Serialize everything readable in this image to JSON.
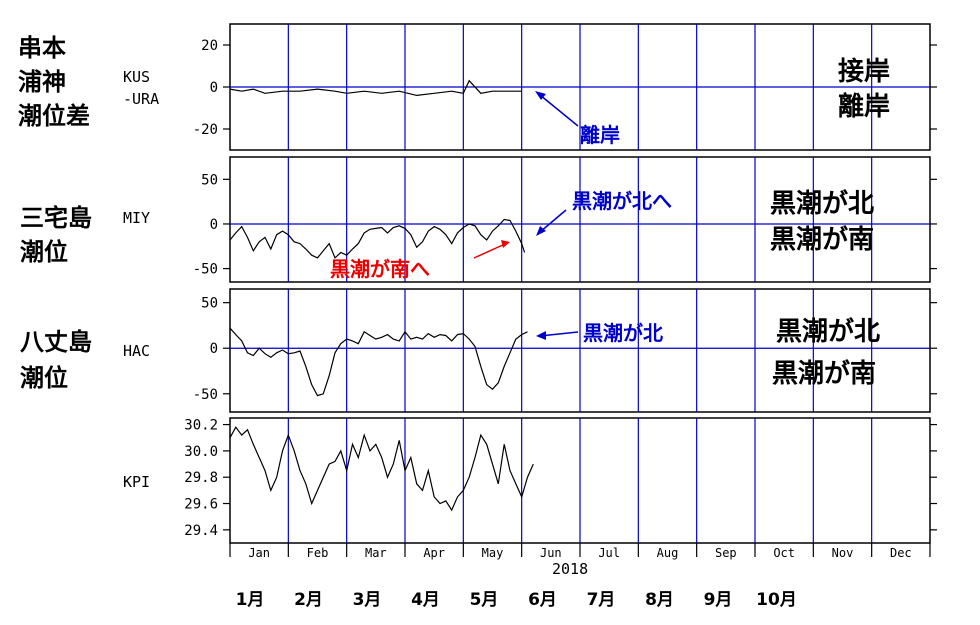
{
  "colors": {
    "grid": "#0000cc",
    "frame": "#000000",
    "series": "#000000",
    "annotation_blue": "#0000cc",
    "annotation_red": "#ee0000"
  },
  "year": "2018",
  "months_en": [
    "Jan",
    "Feb",
    "Mar",
    "Apr",
    "May",
    "Jun",
    "Jul",
    "Aug",
    "Sep",
    "Oct",
    "Nov",
    "Dec"
  ],
  "months_jp": [
    "1月",
    "2月",
    "3月",
    "4月",
    "5月",
    "6月",
    "7月",
    "8月",
    "9月",
    "10月"
  ],
  "panels": [
    {
      "id": "kus",
      "side_label": [
        "串本",
        "浦神",
        "潮位差"
      ],
      "code": [
        "KUS",
        "-URA"
      ],
      "legend": [
        "接岸",
        "離岸"
      ]
    },
    {
      "id": "miy",
      "side_label": [
        "三宅島",
        "潮位"
      ],
      "code": [
        "MIY"
      ],
      "legend": [
        "黒潮が北",
        "黒潮が南"
      ]
    },
    {
      "id": "hac",
      "side_label": [
        "八丈島",
        "潮位"
      ],
      "code": [
        "HAC"
      ],
      "legend": [
        "黒潮が北",
        "黒潮が南"
      ]
    },
    {
      "id": "kpi",
      "side_label": [],
      "code": [
        "KPI"
      ],
      "legend": []
    }
  ],
  "annotations": [
    {
      "id": "kus-ann",
      "text": "離岸",
      "color": "blue"
    },
    {
      "id": "miy-ann-north",
      "text": "黒潮が北へ",
      "color": "blue"
    },
    {
      "id": "miy-ann-south",
      "text": "黒潮が南へ",
      "color": "red"
    },
    {
      "id": "hac-ann",
      "text": "黒潮が北",
      "color": "blue"
    }
  ],
  "chart_data": [
    {
      "type": "line",
      "id": "kus",
      "ylabel": "KUS -URA",
      "ylim": [
        -30,
        30
      ],
      "yticks": [
        20,
        0,
        -20
      ],
      "x_unit": "month (fractional, 2018)",
      "series": [
        {
          "x": [
            1.0,
            1.2,
            1.4,
            1.6,
            1.9,
            2.2,
            2.5,
            2.8,
            3.0,
            3.3,
            3.6,
            3.9,
            4.2,
            4.5,
            4.8,
            5.0,
            5.1,
            5.3,
            5.5,
            5.7,
            5.9,
            6.0
          ],
          "values": [
            -1,
            -2,
            -1,
            -3,
            -2,
            -2,
            -1,
            -2,
            -3,
            -2,
            -3,
            -2,
            -4,
            -3,
            -2,
            -3,
            3,
            -3,
            -2,
            -2,
            -2,
            -2
          ]
        }
      ]
    },
    {
      "type": "line",
      "id": "miy",
      "ylabel": "MIY",
      "ylim": [
        -65,
        75
      ],
      "yticks": [
        50,
        0,
        -50
      ],
      "series": [
        {
          "x": [
            1.0,
            1.1,
            1.2,
            1.3,
            1.4,
            1.5,
            1.6,
            1.7,
            1.8,
            1.9,
            2.0,
            2.1,
            2.2,
            2.3,
            2.4,
            2.5,
            2.6,
            2.7,
            2.8,
            2.9,
            3.0,
            3.1,
            3.2,
            3.3,
            3.4,
            3.5,
            3.6,
            3.7,
            3.8,
            3.9,
            4.0,
            4.1,
            4.2,
            4.3,
            4.4,
            4.5,
            4.6,
            4.7,
            4.8,
            4.9,
            5.0,
            5.1,
            5.2,
            5.3,
            5.4,
            5.5,
            5.6,
            5.7,
            5.8,
            5.9,
            6.0,
            6.05
          ],
          "values": [
            -18,
            -10,
            -3,
            -15,
            -30,
            -20,
            -15,
            -28,
            -12,
            -8,
            -12,
            -20,
            -22,
            -28,
            -35,
            -38,
            -30,
            -22,
            -38,
            -32,
            -35,
            -28,
            -22,
            -10,
            -6,
            -5,
            -4,
            -10,
            -4,
            -2,
            -5,
            -12,
            -26,
            -20,
            -8,
            -3,
            -6,
            -12,
            -22,
            -10,
            -4,
            0,
            -2,
            -12,
            -18,
            -8,
            -2,
            5,
            4,
            -8,
            -22,
            -32
          ]
        }
      ]
    },
    {
      "type": "line",
      "id": "hac",
      "ylabel": "HAC",
      "ylim": [
        -70,
        65
      ],
      "yticks": [
        50,
        0,
        -50
      ],
      "series": [
        {
          "x": [
            1.0,
            1.1,
            1.2,
            1.3,
            1.4,
            1.5,
            1.6,
            1.7,
            1.8,
            1.9,
            2.0,
            2.1,
            2.2,
            2.3,
            2.4,
            2.5,
            2.6,
            2.7,
            2.8,
            2.9,
            3.0,
            3.1,
            3.2,
            3.3,
            3.4,
            3.5,
            3.6,
            3.7,
            3.8,
            3.9,
            4.0,
            4.1,
            4.2,
            4.3,
            4.4,
            4.5,
            4.6,
            4.7,
            4.8,
            4.9,
            5.0,
            5.1,
            5.2,
            5.3,
            5.4,
            5.5,
            5.6,
            5.7,
            5.8,
            5.9,
            6.0,
            6.1
          ],
          "values": [
            22,
            15,
            8,
            -5,
            -8,
            0,
            -6,
            -10,
            -5,
            -2,
            -6,
            -5,
            -3,
            -20,
            -40,
            -52,
            -50,
            -30,
            -5,
            5,
            10,
            8,
            5,
            18,
            14,
            10,
            12,
            15,
            10,
            8,
            18,
            10,
            12,
            10,
            16,
            12,
            15,
            14,
            8,
            15,
            16,
            10,
            2,
            -20,
            -40,
            -45,
            -38,
            -20,
            -5,
            10,
            15,
            18
          ]
        }
      ]
    },
    {
      "type": "line",
      "id": "kpi",
      "ylabel": "KPI",
      "ylim": [
        29.3,
        30.25
      ],
      "yticks": [
        30.2,
        30.0,
        29.8,
        29.6,
        29.4
      ],
      "ytick_labels": [
        "30.2",
        "30.0",
        "29.8",
        "29.6",
        "29.4"
      ],
      "series": [
        {
          "x": [
            1.0,
            1.1,
            1.2,
            1.3,
            1.4,
            1.5,
            1.6,
            1.7,
            1.8,
            1.9,
            2.0,
            2.1,
            2.2,
            2.3,
            2.4,
            2.5,
            2.6,
            2.7,
            2.8,
            2.9,
            3.0,
            3.1,
            3.2,
            3.3,
            3.4,
            3.5,
            3.6,
            3.7,
            3.8,
            3.9,
            4.0,
            4.1,
            4.2,
            4.3,
            4.4,
            4.5,
            4.6,
            4.7,
            4.8,
            4.9,
            5.0,
            5.1,
            5.2,
            5.3,
            5.4,
            5.5,
            5.6,
            5.7,
            5.8,
            5.9,
            6.0,
            6.1,
            6.2
          ],
          "values": [
            30.1,
            30.18,
            30.12,
            30.16,
            30.05,
            29.95,
            29.85,
            29.7,
            29.8,
            30.0,
            30.12,
            30.0,
            29.85,
            29.75,
            29.6,
            29.7,
            29.8,
            29.9,
            29.92,
            30.0,
            29.85,
            30.05,
            29.95,
            30.12,
            30.0,
            30.05,
            29.95,
            29.8,
            29.9,
            30.08,
            29.85,
            29.95,
            29.75,
            29.7,
            29.85,
            29.65,
            29.6,
            29.62,
            29.55,
            29.65,
            29.7,
            29.8,
            29.95,
            30.12,
            30.05,
            29.9,
            29.75,
            30.05,
            29.85,
            29.75,
            29.65,
            29.8,
            29.9
          ]
        }
      ]
    }
  ]
}
